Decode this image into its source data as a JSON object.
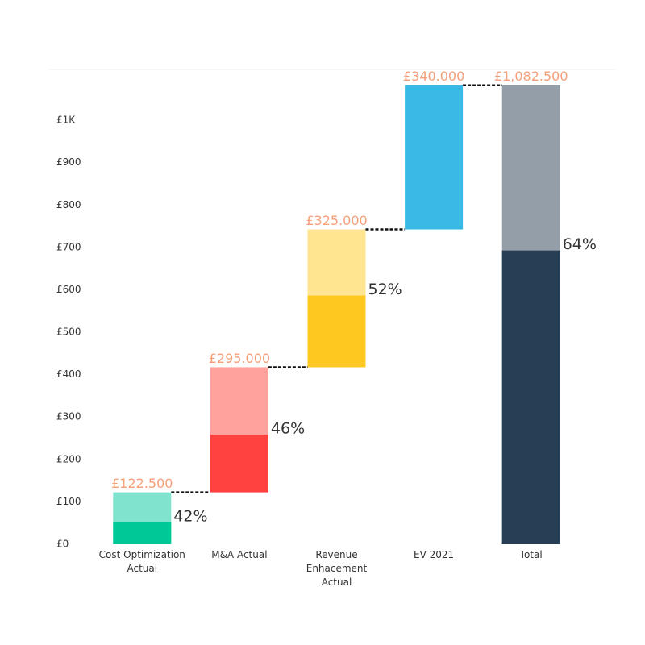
{
  "chart_data": {
    "type": "waterfall",
    "categories": [
      "Cost Optimization Actual",
      "M&A Actual",
      "Revenue Enhacement Actual",
      "EV 2021",
      "Total"
    ],
    "values": [
      122.5,
      295,
      325,
      340,
      1082.5
    ],
    "value_labels": [
      "£122.500",
      "£295.000",
      "£325.000",
      "£340.000",
      "£1,082.500"
    ],
    "shares": [
      42,
      46,
      52,
      null,
      64
    ],
    "share_labels": [
      "42%",
      "46%",
      "52%",
      null,
      "64%"
    ],
    "colors": [
      "#7fe3ce",
      "#ffa19d",
      "#ffe58f",
      "#3bb9e6",
      "#939ea8"
    ],
    "share_colors": [
      "#00c896",
      "#ff413f",
      "#ffc820",
      null,
      "#283e55"
    ],
    "label_color": "#f5a07a",
    "ylim": [
      0,
      1120
    ],
    "yticks": [
      {
        "value": 0,
        "label": "£0"
      },
      {
        "value": 100,
        "label": "£100"
      },
      {
        "value": 200,
        "label": "£200"
      },
      {
        "value": 300,
        "label": "£300"
      },
      {
        "value": 400,
        "label": "£400"
      },
      {
        "value": 500,
        "label": "£500"
      },
      {
        "value": 600,
        "label": "£600"
      },
      {
        "value": 700,
        "label": "£700"
      },
      {
        "value": 800,
        "label": "£800"
      },
      {
        "value": 900,
        "label": "£900"
      },
      {
        "value": 1000,
        "label": "£1K"
      }
    ]
  }
}
